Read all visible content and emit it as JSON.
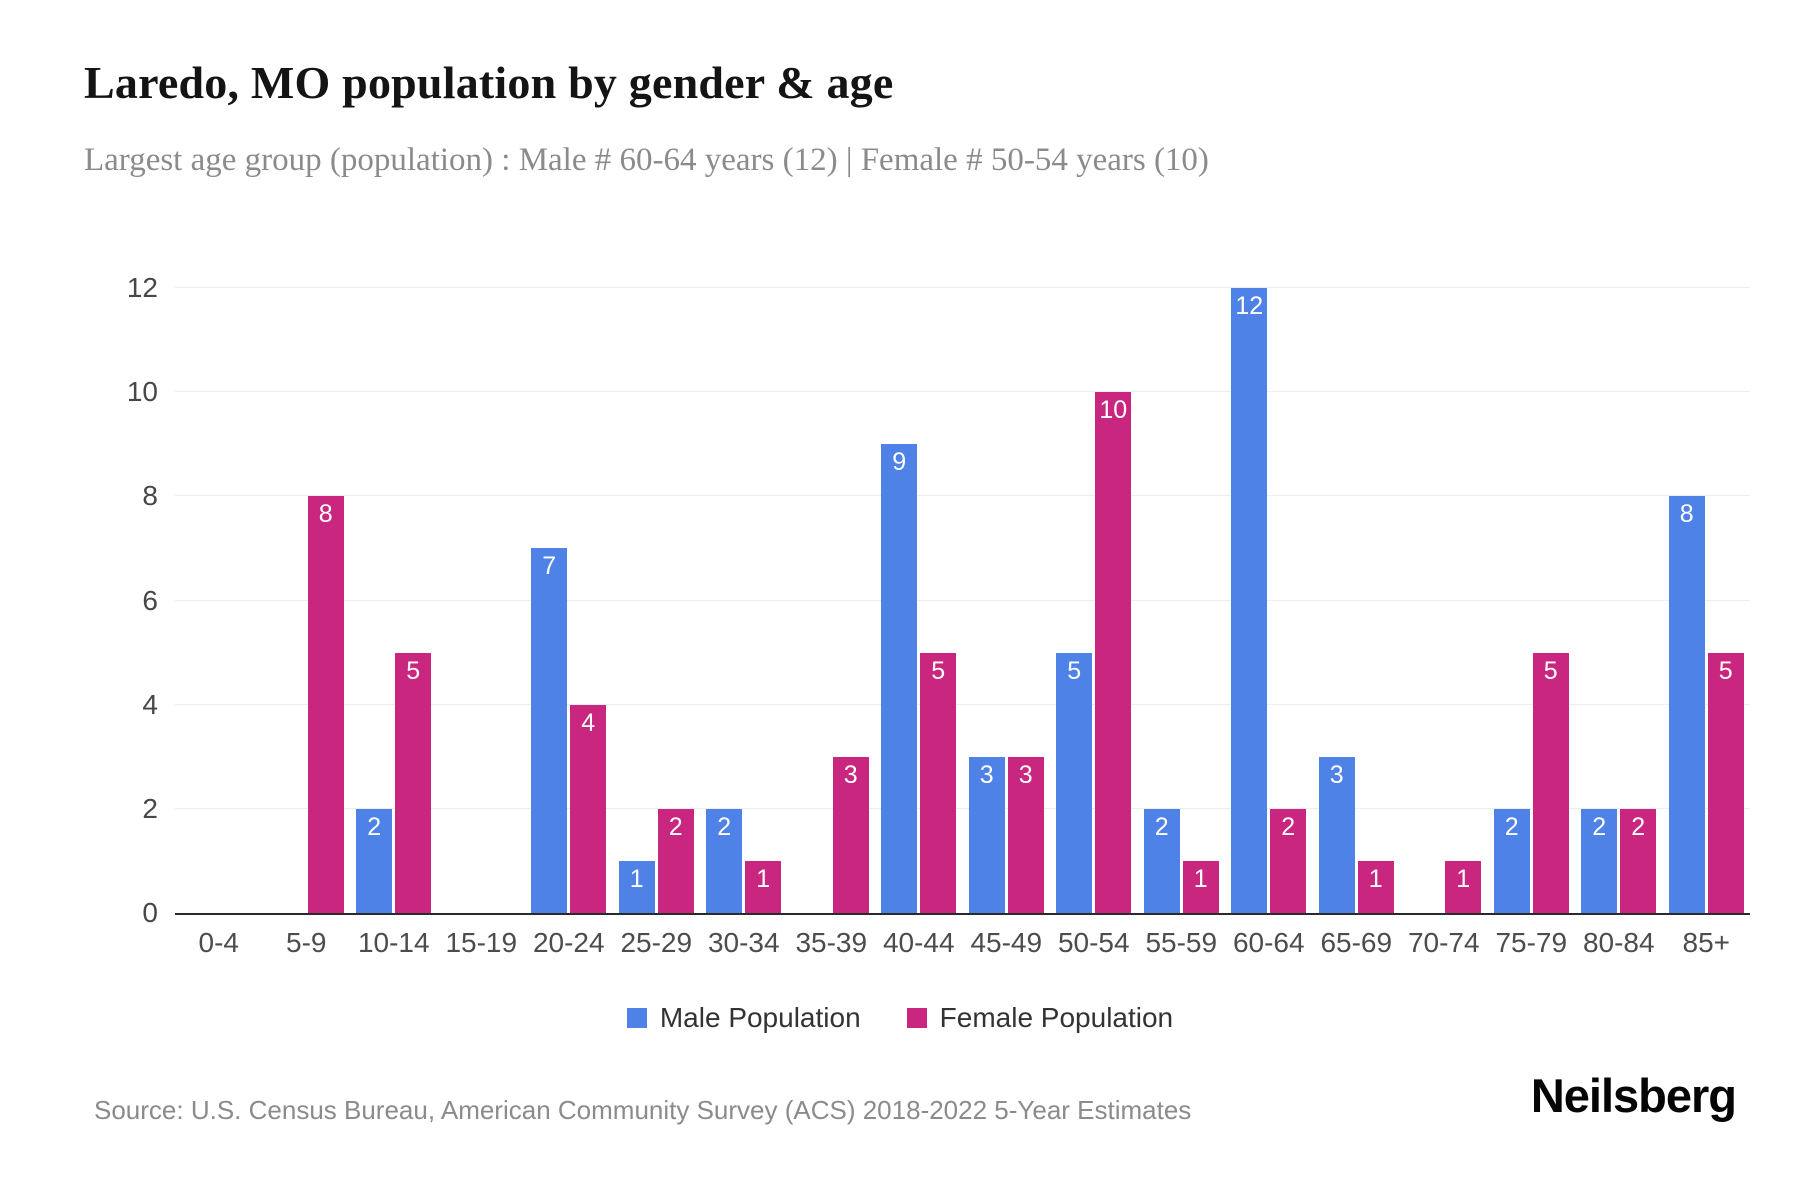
{
  "header": {
    "title": "Laredo, MO population by gender & age",
    "subtitle": "Largest age group (population) : Male # 60-64 years (12) | Female # 50-54 years (10)"
  },
  "chart_data": {
    "type": "bar",
    "title": "Laredo, MO population by gender & age",
    "categories": [
      "0-4",
      "5-9",
      "10-14",
      "15-19",
      "20-24",
      "25-29",
      "30-34",
      "35-39",
      "40-44",
      "45-49",
      "50-54",
      "55-59",
      "60-64",
      "65-69",
      "70-74",
      "75-79",
      "80-84",
      "85+"
    ],
    "series": [
      {
        "name": "Male Population",
        "color": "#4e82e6",
        "values": [
          0,
          0,
          2,
          0,
          7,
          1,
          2,
          0,
          9,
          3,
          5,
          2,
          12,
          3,
          0,
          2,
          2,
          8
        ]
      },
      {
        "name": "Female Population",
        "color": "#c9267f",
        "values": [
          0,
          8,
          5,
          0,
          4,
          2,
          1,
          3,
          5,
          3,
          10,
          1,
          2,
          1,
          1,
          5,
          2,
          5
        ]
      }
    ],
    "xlabel": "",
    "ylabel": "",
    "ylim": [
      0,
      12
    ],
    "yticks": [
      0,
      2,
      4,
      6,
      8,
      10,
      12
    ],
    "grid": true,
    "legend_position": "bottom",
    "bar_value_labels": "inside-top"
  },
  "footer": {
    "source": "Source: U.S. Census Bureau, American Community Survey (ACS) 2018-2022 5-Year Estimates",
    "brand": "Neilsberg"
  }
}
